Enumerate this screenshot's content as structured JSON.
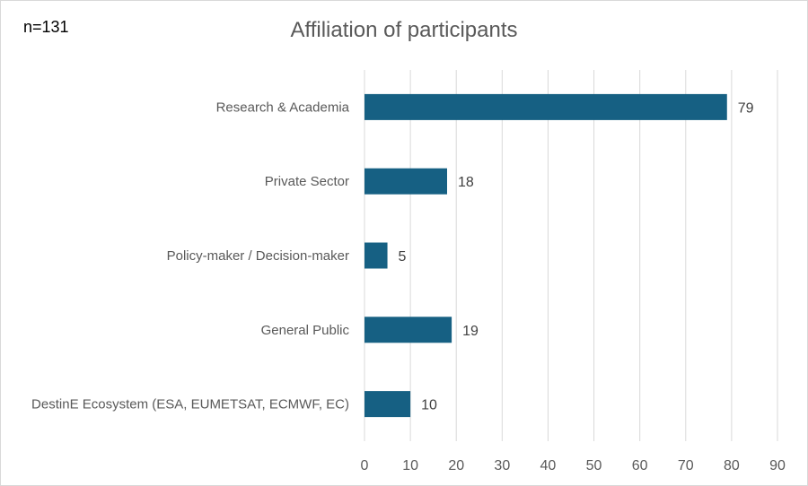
{
  "note": "n=131",
  "colors": {
    "bar": "#166083",
    "grid": "#d9d9d9",
    "axis_text": "#595959",
    "value_text": "#404040"
  },
  "chart_data": {
    "type": "bar",
    "orientation": "horizontal",
    "title": "Affiliation of participants",
    "categories": [
      "Research & Academia",
      "Private Sector",
      "Policy-maker / Decision-maker",
      "General Public",
      "DestinE Ecosystem (ESA, EUMETSAT, ECMWF, EC)"
    ],
    "values": [
      79,
      18,
      5,
      19,
      10
    ],
    "xlim": [
      0,
      90
    ],
    "xticks": [
      0,
      10,
      20,
      30,
      40,
      50,
      60,
      70,
      80,
      90
    ],
    "grid": true,
    "data_labels": true,
    "legend": "none"
  }
}
